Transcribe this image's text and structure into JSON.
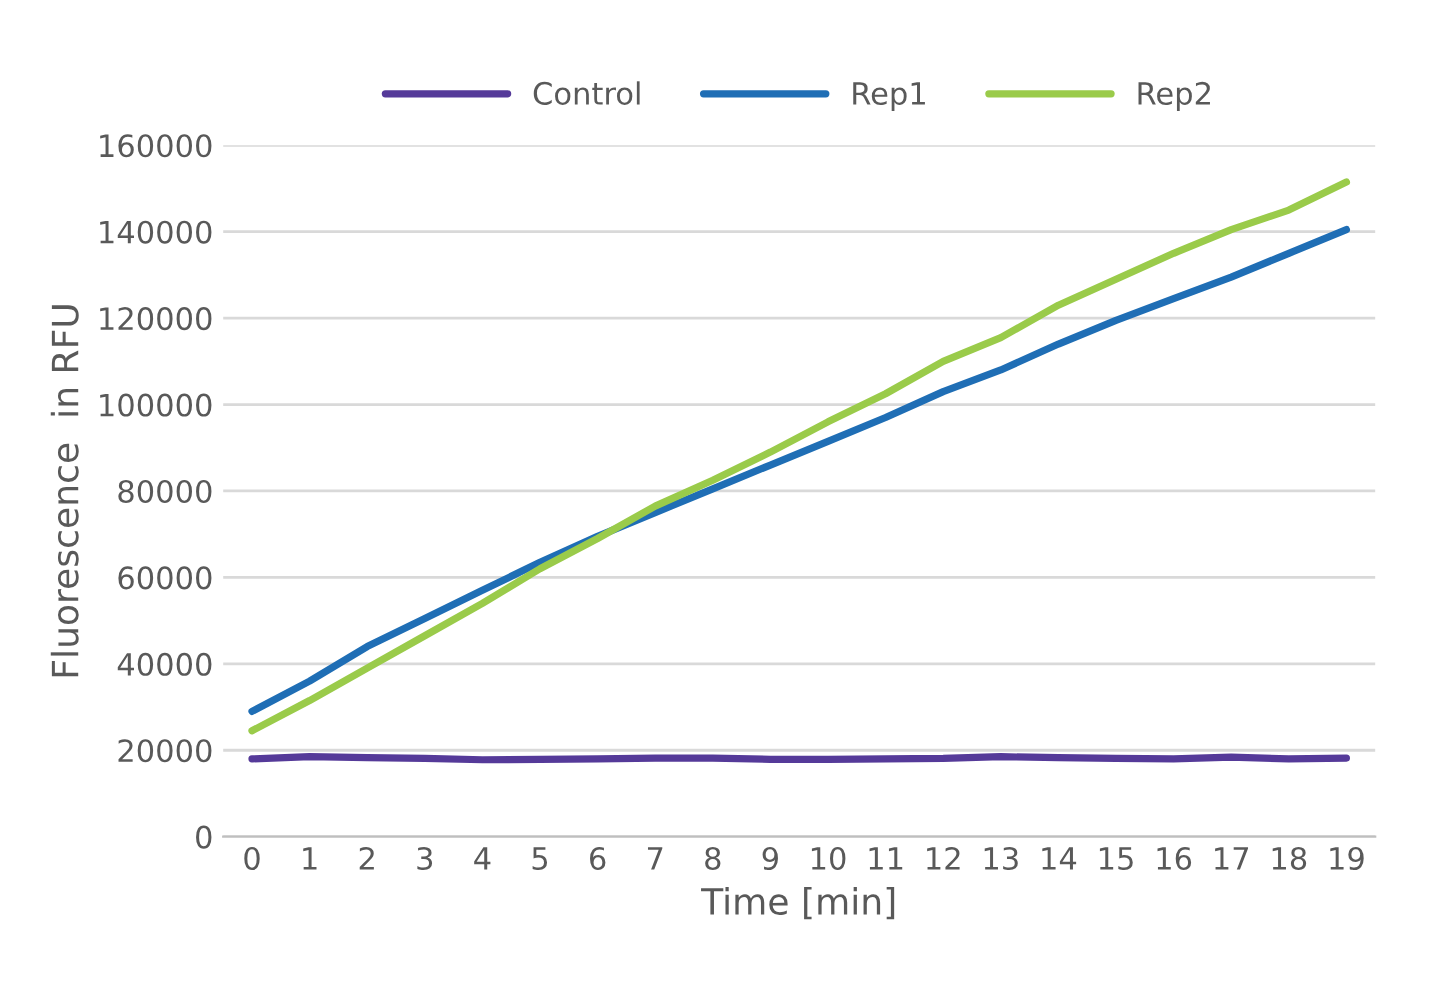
{
  "chart_data": {
    "type": "line",
    "xlabel": "Time [min]",
    "ylabel": "Fluorescence  in RFU",
    "categories": [
      "0",
      "1",
      "2",
      "3",
      "4",
      "5",
      "6",
      "7",
      "8",
      "9",
      "10",
      "11",
      "12",
      "13",
      "14",
      "15",
      "16",
      "17",
      "18",
      "19"
    ],
    "series": [
      {
        "name": "Control",
        "color": "#553a99",
        "values": [
          18000,
          18500,
          18300,
          18100,
          17800,
          17900,
          18000,
          18200,
          18200,
          17900,
          17900,
          18000,
          18100,
          18500,
          18300,
          18100,
          18000,
          18400,
          18000,
          18200
        ]
      },
      {
        "name": "Rep1",
        "color": "#1f6eb5",
        "values": [
          29000,
          36000,
          44000,
          50500,
          57000,
          63500,
          69500,
          75000,
          80500,
          86000,
          91500,
          97000,
          103000,
          108000,
          114000,
          119500,
          124500,
          129500,
          135000,
          140500
        ]
      },
      {
        "name": "Rep2",
        "color": "#9acb4a",
        "values": [
          24500,
          31500,
          39000,
          46500,
          54000,
          62000,
          69000,
          76500,
          82500,
          89000,
          96000,
          102500,
          110000,
          115500,
          123000,
          129000,
          135000,
          140500,
          145000,
          151500
        ]
      }
    ],
    "ylim": [
      0,
      160000
    ],
    "yticks": [
      0,
      20000,
      40000,
      60000,
      80000,
      100000,
      120000,
      140000,
      160000
    ],
    "grid": "y",
    "legend": "top",
    "marker": "none",
    "line_style": "solid"
  }
}
